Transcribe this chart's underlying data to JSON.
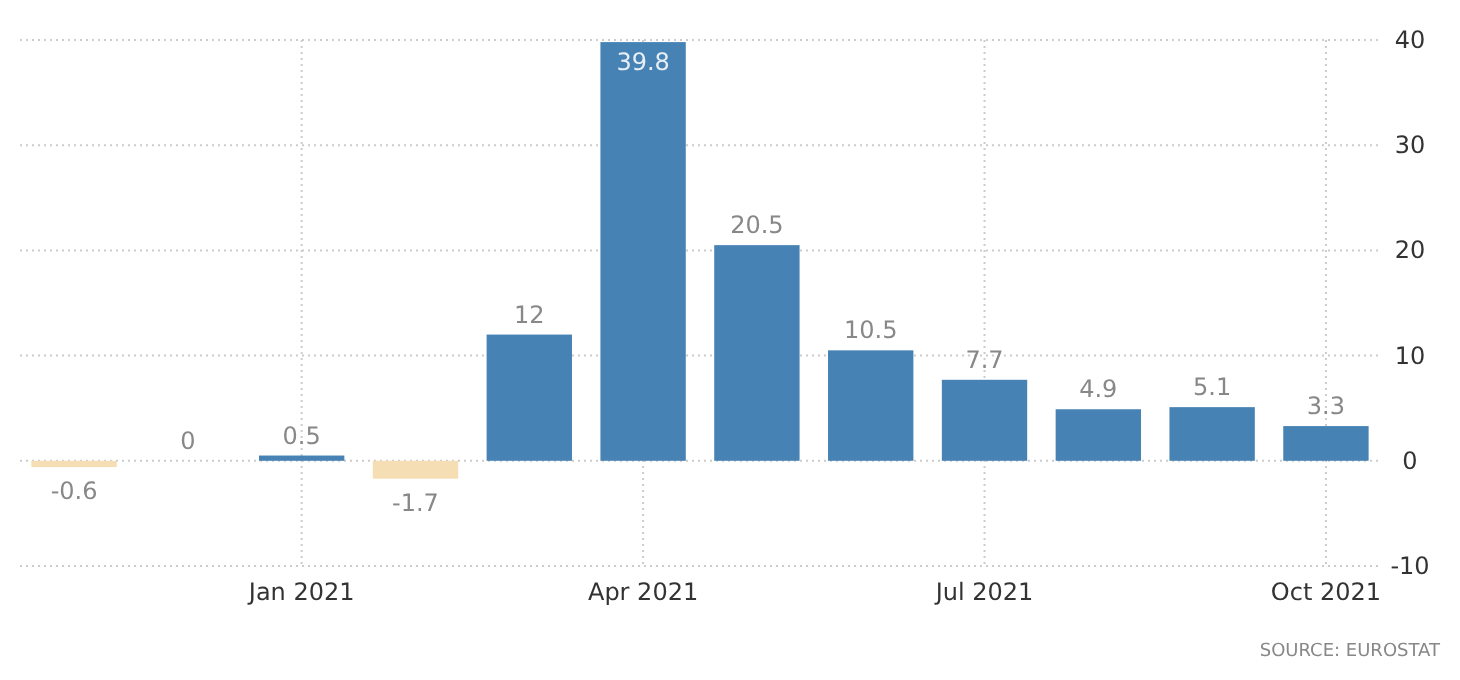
{
  "chart_data": {
    "type": "bar",
    "categories": [
      null,
      null,
      "Jan 2021",
      null,
      null,
      "Apr 2021",
      null,
      null,
      "Jul 2021",
      null,
      null,
      "Oct 2021"
    ],
    "values": [
      -0.6,
      0,
      0.5,
      -1.7,
      12,
      39.8,
      20.5,
      10.5,
      7.7,
      4.9,
      5.1,
      3.3
    ],
    "colors": [
      "#f5deb3",
      "#f5deb3",
      "#4682b4",
      "#f5deb3",
      "#4682b4",
      "#4682b4",
      "#4682b4",
      "#4682b4",
      "#4682b4",
      "#4682b4",
      "#4682b4",
      "#4682b4"
    ],
    "ylim": [
      -10,
      40
    ],
    "yticks": [
      -10,
      0,
      10,
      20,
      30,
      40
    ],
    "grid": true,
    "data_labels": true,
    "annotations": [
      "SOURCE: EUROSTAT"
    ]
  }
}
